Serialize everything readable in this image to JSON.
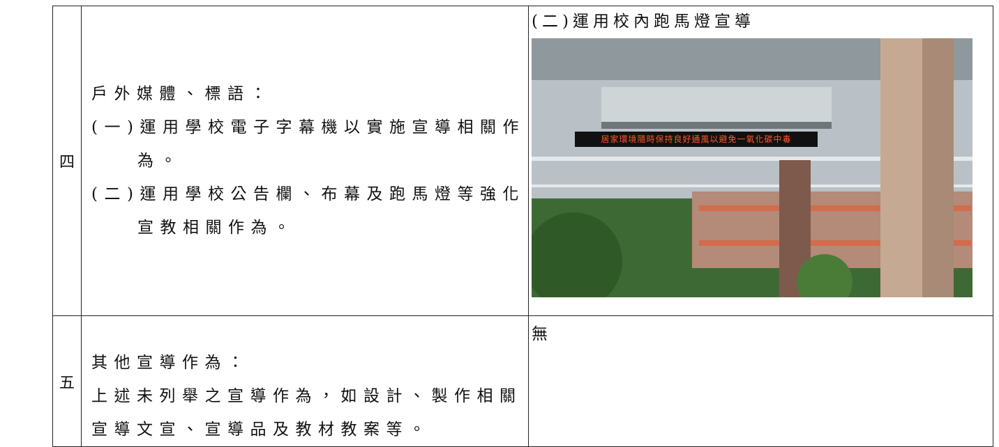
{
  "table": {
    "rows": [
      {
        "number": "四",
        "description": {
          "heading": "戶外媒體、標語：",
          "items": [
            "(一)運用學校電子字幕機以實施宣導相關作為。",
            "(二)運用學校公告欄、布幕及跑馬燈等強化宣教相關作為。"
          ]
        },
        "evidence": {
          "caption": "(二)運用校內跑馬燈宣導",
          "photo_sign_text": "居家環境隨時保持良好通風以避免一氧化碳中毒"
        }
      },
      {
        "number": "五",
        "description": {
          "heading": "其他宣導作為：",
          "items": [
            "上述未列舉之宣導作為，如設計、製作相關宣導文宣、宣導品及教材教案等。"
          ]
        },
        "evidence": {
          "caption": "無"
        }
      }
    ]
  }
}
